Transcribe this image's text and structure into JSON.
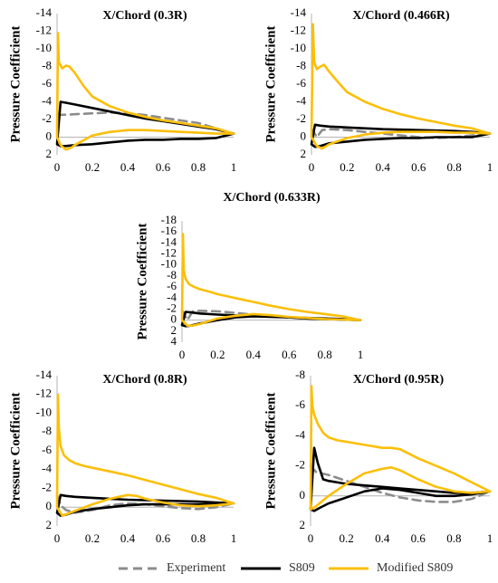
{
  "colors": {
    "experiment": "#8c8c8c",
    "s809": "#000000",
    "modified_s809": "#FBBF0A",
    "axis": "#b4b4b4"
  },
  "legend": {
    "experiment": "Experiment",
    "s809": "S809",
    "modified_s809": "Modified S809"
  },
  "chart_data": [
    {
      "type": "line",
      "title": "X/Chord (0.3R)",
      "ylabel": "Pressure Coefficient",
      "xlim": [
        0,
        1
      ],
      "ylim": [
        -14,
        2
      ],
      "y_inverted": true,
      "xticks": [
        "0",
        "0.2",
        "0.4",
        "0.6",
        "0.8",
        "1"
      ],
      "yticks": [
        "-14",
        "-12",
        "-10",
        "-8",
        "-6",
        "-4",
        "-2",
        "0",
        "2"
      ],
      "yticks_values": [
        -14,
        -12,
        -10,
        -8,
        -6,
        -4,
        -2,
        0,
        2
      ],
      "series": [
        {
          "name": "Experiment",
          "x": [
            0.0,
            0.1,
            0.2,
            0.3,
            0.4,
            0.5,
            0.6,
            0.7,
            0.8,
            0.9,
            1.0
          ],
          "y": [
            -2.5,
            -2.6,
            -2.7,
            -2.8,
            -2.7,
            -2.5,
            -2.2,
            -1.9,
            -1.6,
            -1.0,
            -0.4
          ]
        },
        {
          "name": "S809",
          "x": [
            1.0,
            0.9,
            0.8,
            0.7,
            0.6,
            0.5,
            0.4,
            0.3,
            0.2,
            0.1,
            0.05,
            0.02,
            0.0,
            0.02,
            0.05,
            0.1,
            0.2,
            0.3,
            0.4,
            0.5,
            0.6,
            0.7,
            0.8,
            0.9,
            1.0
          ],
          "y": [
            -0.4,
            -0.9,
            -1.2,
            -1.5,
            -1.8,
            -2.1,
            -2.5,
            -2.9,
            -3.3,
            -3.7,
            -3.9,
            -4.0,
            0.8,
            1.0,
            1.0,
            0.9,
            0.8,
            0.6,
            0.4,
            0.3,
            0.3,
            0.2,
            0.2,
            0.1,
            -0.4
          ]
        },
        {
          "name": "Modified S809",
          "x": [
            1.0,
            0.9,
            0.8,
            0.7,
            0.6,
            0.5,
            0.4,
            0.3,
            0.2,
            0.15,
            0.1,
            0.07,
            0.05,
            0.03,
            0.01,
            0.005,
            0.0,
            0.02,
            0.05,
            0.08,
            0.1,
            0.2,
            0.3,
            0.4,
            0.5,
            0.6,
            0.7,
            0.8,
            0.9,
            1.0
          ],
          "y": [
            -0.4,
            -1.0,
            -1.3,
            -1.6,
            -1.9,
            -2.3,
            -2.8,
            -3.5,
            -4.6,
            -5.8,
            -7.3,
            -8.0,
            -8.1,
            -7.8,
            -8.5,
            -11.8,
            0.0,
            0.9,
            1.4,
            1.2,
            0.9,
            -0.2,
            -0.6,
            -0.8,
            -0.8,
            -0.7,
            -0.6,
            -0.5,
            -0.4,
            -0.4
          ]
        }
      ]
    },
    {
      "type": "line",
      "title": "X/Chord (0.466R)",
      "ylabel": "Pressure Coefficient",
      "xlim": [
        0,
        1
      ],
      "ylim": [
        -14,
        2
      ],
      "y_inverted": true,
      "xticks": [
        "0",
        "0.2",
        "0.4",
        "0.6",
        "0.8",
        "1"
      ],
      "yticks": [
        "-14",
        "-12",
        "-10",
        "-8",
        "-6",
        "-4",
        "-2",
        "0",
        "2"
      ],
      "yticks_values": [
        -14,
        -12,
        -10,
        -8,
        -6,
        -4,
        -2,
        0,
        2
      ],
      "series": [
        {
          "name": "Experiment",
          "x": [
            0.0,
            0.03,
            0.06,
            0.1,
            0.2,
            0.3,
            0.4,
            0.5,
            0.6,
            0.7,
            0.8,
            0.9,
            1.0
          ],
          "y": [
            -1.0,
            0.0,
            -0.8,
            -0.9,
            -0.8,
            -0.6,
            -0.4,
            -0.2,
            0.0,
            0.1,
            0.0,
            -0.2,
            -0.4
          ]
        },
        {
          "name": "S809",
          "x": [
            1.0,
            0.9,
            0.8,
            0.6,
            0.4,
            0.2,
            0.1,
            0.05,
            0.02,
            0.0,
            0.02,
            0.05,
            0.1,
            0.2,
            0.3,
            0.4,
            0.5,
            0.6,
            0.7,
            0.8,
            0.9,
            1.0
          ],
          "y": [
            -0.4,
            -0.6,
            -0.7,
            -0.8,
            -0.9,
            -1.1,
            -1.2,
            -1.3,
            -1.4,
            0.8,
            1.1,
            1.0,
            0.7,
            0.5,
            0.3,
            0.2,
            0.1,
            0.1,
            0.0,
            0.0,
            0.0,
            -0.4
          ]
        },
        {
          "name": "Modified S809",
          "x": [
            1.0,
            0.9,
            0.8,
            0.7,
            0.6,
            0.5,
            0.4,
            0.3,
            0.2,
            0.15,
            0.1,
            0.07,
            0.05,
            0.03,
            0.015,
            0.008,
            0.0,
            0.03,
            0.06,
            0.1,
            0.2,
            0.3,
            0.4,
            0.5,
            0.6,
            0.7,
            0.8,
            0.9,
            1.0
          ],
          "y": [
            -0.4,
            -1.0,
            -1.3,
            -1.7,
            -2.1,
            -2.6,
            -3.2,
            -4.0,
            -5.1,
            -6.2,
            -7.4,
            -8.2,
            -8.0,
            -7.7,
            -8.5,
            -12.8,
            0.0,
            1.0,
            1.3,
            0.8,
            0.1,
            -0.3,
            -0.5,
            -0.6,
            -0.6,
            -0.6,
            -0.5,
            -0.5,
            -0.4
          ]
        }
      ]
    },
    {
      "type": "line",
      "title": "X/Chord (0.633R)",
      "ylabel": "Pressure Coefficient",
      "xlim": [
        0,
        1
      ],
      "ylim": [
        -18,
        4
      ],
      "y_inverted": true,
      "xticks": [
        "0",
        "0.2",
        "0.4",
        "0.6",
        "0.8",
        "1"
      ],
      "yticks": [
        "-18",
        "-16",
        "-14",
        "-12",
        "-10",
        "-8",
        "-6",
        "-4",
        "-2",
        "0",
        "2",
        "4"
      ],
      "yticks_values": [
        -18,
        -16,
        -14,
        -12,
        -10,
        -8,
        -6,
        -4,
        -2,
        0,
        2,
        4
      ],
      "series": [
        {
          "name": "Experiment",
          "x": [
            0.0,
            0.03,
            0.06,
            0.1,
            0.2,
            0.3,
            0.4,
            0.5,
            0.6,
            0.7,
            0.8,
            0.9,
            1.0
          ],
          "y": [
            -1.8,
            0.0,
            -1.6,
            -1.7,
            -1.6,
            -1.3,
            -1.0,
            -0.7,
            -0.5,
            -0.3,
            -0.2,
            -0.1,
            0.0
          ]
        },
        {
          "name": "S809",
          "x": [
            1.0,
            0.9,
            0.8,
            0.6,
            0.4,
            0.2,
            0.1,
            0.05,
            0.02,
            0.0,
            0.02,
            0.05,
            0.1,
            0.2,
            0.3,
            0.4,
            0.5,
            0.6,
            0.7,
            0.8,
            0.9,
            1.0
          ],
          "y": [
            0.0,
            -0.2,
            -0.3,
            -0.5,
            -0.7,
            -1.0,
            -1.2,
            -1.4,
            -1.5,
            0.9,
            1.1,
            1.0,
            0.6,
            0.0,
            -0.5,
            -0.7,
            -0.7,
            -0.5,
            -0.3,
            -0.2,
            -0.1,
            0.0
          ]
        },
        {
          "name": "Modified S809",
          "x": [
            1.0,
            0.9,
            0.8,
            0.7,
            0.6,
            0.5,
            0.4,
            0.3,
            0.2,
            0.15,
            0.1,
            0.07,
            0.04,
            0.02,
            0.01,
            0.005,
            0.0,
            0.03,
            0.06,
            0.1,
            0.2,
            0.3,
            0.4,
            0.5,
            0.6,
            0.7,
            0.8,
            0.9,
            1.0
          ],
          "y": [
            0.0,
            -0.7,
            -1.1,
            -1.5,
            -2.0,
            -2.6,
            -3.3,
            -4.0,
            -4.7,
            -5.2,
            -5.6,
            -6.0,
            -6.5,
            -7.5,
            -9.0,
            -15.6,
            0.0,
            1.0,
            1.0,
            0.7,
            -0.3,
            -0.8,
            -1.1,
            -0.9,
            -0.6,
            -0.4,
            -0.2,
            -0.1,
            0.0
          ]
        }
      ]
    },
    {
      "type": "line",
      "title": "X/Chord (0.8R)",
      "ylabel": "Pressure Coefficient",
      "xlim": [
        0,
        1
      ],
      "ylim": [
        -14,
        2
      ],
      "y_inverted": true,
      "xticks": [
        "0",
        "0.2",
        "0.4",
        "0.6",
        "0.8",
        "1"
      ],
      "yticks": [
        "-14",
        "-12",
        "-10",
        "-8",
        "-6",
        "-4",
        "-2",
        "0",
        "2"
      ],
      "yticks_values": [
        -14,
        -12,
        -10,
        -8,
        -6,
        -4,
        -2,
        0,
        2
      ],
      "series": [
        {
          "name": "Experiment",
          "x": [
            0.0,
            0.02,
            0.05,
            0.1,
            0.2,
            0.3,
            0.4,
            0.5,
            0.6,
            0.7,
            0.8,
            0.9,
            1.0
          ],
          "y": [
            -1.3,
            -0.2,
            0.3,
            0.6,
            0.3,
            -0.2,
            -0.4,
            -0.3,
            -0.1,
            0.1,
            0.2,
            0.0,
            -0.4
          ]
        },
        {
          "name": "S809",
          "x": [
            1.0,
            0.9,
            0.8,
            0.6,
            0.4,
            0.2,
            0.1,
            0.05,
            0.02,
            0.0,
            0.02,
            0.05,
            0.1,
            0.2,
            0.3,
            0.4,
            0.5,
            0.6,
            0.7,
            0.8,
            0.9,
            1.0
          ],
          "y": [
            -0.4,
            -0.5,
            -0.6,
            -0.7,
            -0.8,
            -1.0,
            -1.1,
            -1.2,
            -1.3,
            0.6,
            0.9,
            0.8,
            0.5,
            0.2,
            0.0,
            -0.2,
            -0.3,
            -0.3,
            -0.3,
            -0.3,
            -0.3,
            -0.4
          ]
        },
        {
          "name": "Modified S809",
          "x": [
            1.0,
            0.9,
            0.8,
            0.7,
            0.6,
            0.5,
            0.4,
            0.3,
            0.2,
            0.15,
            0.1,
            0.07,
            0.04,
            0.02,
            0.01,
            0.005,
            0.0,
            0.03,
            0.06,
            0.1,
            0.2,
            0.3,
            0.4,
            0.45,
            0.5,
            0.6,
            0.7,
            0.8,
            0.9,
            1.0
          ],
          "y": [
            -0.4,
            -1.0,
            -1.4,
            -1.9,
            -2.4,
            -2.9,
            -3.4,
            -3.8,
            -4.2,
            -4.4,
            -4.7,
            -5.0,
            -5.5,
            -6.5,
            -8.5,
            -12.0,
            0.0,
            0.9,
            0.7,
            0.4,
            -0.3,
            -0.9,
            -1.3,
            -1.2,
            -0.9,
            -0.5,
            -0.2,
            -0.1,
            -0.2,
            -0.4
          ]
        }
      ]
    },
    {
      "type": "line",
      "title": "X/Chord (0.95R)",
      "ylabel": "Pressure Coefficient",
      "xlim": [
        0,
        1
      ],
      "ylim": [
        -8,
        2
      ],
      "y_inverted": true,
      "xticks": [
        "0",
        "0.2",
        "0.4",
        "0.6",
        "0.8",
        "1"
      ],
      "yticks": [
        "-8",
        "-6",
        "-4",
        "-2",
        "0",
        "2"
      ],
      "yticks_values": [
        -8,
        -6,
        -4,
        -2,
        0,
        2
      ],
      "series": [
        {
          "name": "Experiment",
          "x": [
            0.0,
            0.03,
            0.06,
            0.1,
            0.2,
            0.3,
            0.4,
            0.5,
            0.6,
            0.7,
            0.8,
            0.9,
            1.0
          ],
          "y": [
            -2.0,
            -1.6,
            -1.5,
            -1.4,
            -1.0,
            -0.6,
            -0.2,
            0.1,
            0.3,
            0.4,
            0.4,
            0.2,
            -0.3
          ]
        },
        {
          "name": "S809",
          "x": [
            1.0,
            0.9,
            0.8,
            0.7,
            0.6,
            0.5,
            0.4,
            0.3,
            0.2,
            0.15,
            0.1,
            0.07,
            0.04,
            0.02,
            0.0,
            0.02,
            0.05,
            0.1,
            0.2,
            0.3,
            0.4,
            0.5,
            0.6,
            0.7,
            0.8,
            0.9,
            1.0
          ],
          "y": [
            -0.3,
            -0.2,
            -0.2,
            -0.3,
            -0.4,
            -0.5,
            -0.6,
            -0.7,
            -0.8,
            -0.9,
            -1.0,
            -1.1,
            -2.2,
            -3.2,
            0.9,
            1.0,
            0.8,
            0.5,
            0.1,
            -0.3,
            -0.5,
            -0.4,
            -0.2,
            0.0,
            0.0,
            -0.1,
            -0.3
          ]
        },
        {
          "name": "Modified S809",
          "x": [
            1.0,
            0.9,
            0.8,
            0.7,
            0.6,
            0.5,
            0.45,
            0.4,
            0.3,
            0.2,
            0.15,
            0.1,
            0.07,
            0.04,
            0.02,
            0.01,
            0.005,
            0.0,
            0.03,
            0.06,
            0.1,
            0.2,
            0.3,
            0.4,
            0.45,
            0.5,
            0.6,
            0.7,
            0.8,
            0.9,
            1.0
          ],
          "y": [
            -0.3,
            -0.9,
            -1.5,
            -2.0,
            -2.5,
            -3.1,
            -3.2,
            -3.2,
            -3.4,
            -3.6,
            -3.7,
            -3.9,
            -4.2,
            -4.8,
            -5.4,
            -6.0,
            -7.3,
            0.9,
            0.7,
            0.4,
            0.0,
            -0.8,
            -1.5,
            -1.8,
            -1.9,
            -1.7,
            -1.1,
            -0.6,
            -0.3,
            -0.2,
            -0.3
          ]
        }
      ]
    }
  ]
}
